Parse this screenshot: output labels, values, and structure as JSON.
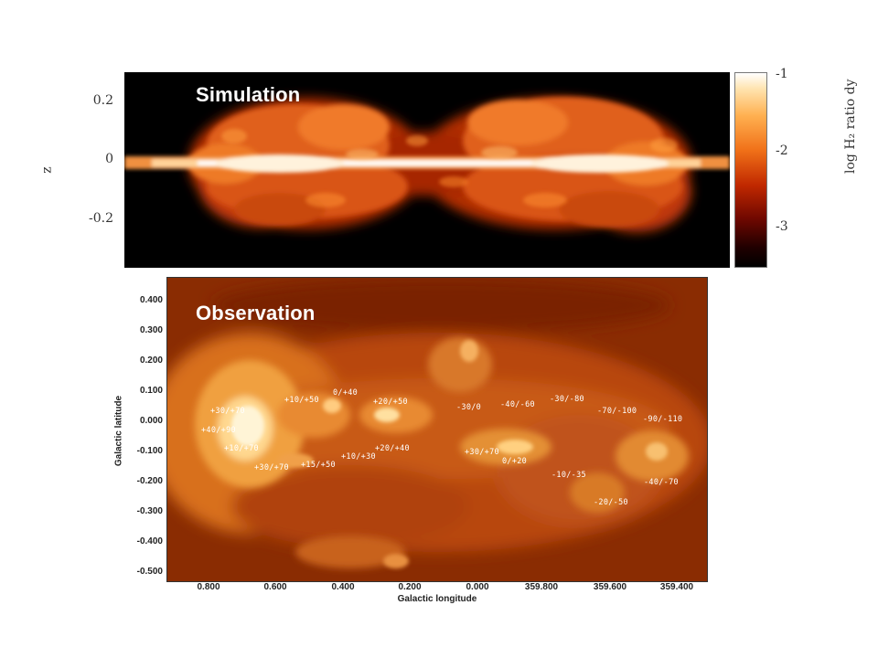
{
  "simulation": {
    "title": "Simulation",
    "y_axis_label": "z",
    "y_ticks": [
      "0.2",
      "0",
      "-0.2"
    ],
    "colorbar": {
      "label": "log  H₂ ratio dy",
      "ticks": [
        "-1",
        "-2",
        "-3"
      ]
    }
  },
  "observation": {
    "title": "Observation",
    "x_axis_label": "Galactic longitude",
    "y_axis_label": "Galactic latitude",
    "lat_ticks": [
      "0.400",
      "0.300",
      "0.200",
      "0.100",
      "0.000",
      "-0.100",
      "-0.200",
      "-0.300",
      "-0.400",
      "-0.500"
    ],
    "lon_ticks": [
      "0.800",
      "0.600",
      "0.400",
      "0.200",
      "0.000",
      "359.800",
      "359.600",
      "359.400"
    ],
    "region_labels": [
      "+30/+70",
      "+40/+90",
      "+10/+70",
      "+30/+70",
      "+10/+50",
      "0/+40",
      "+20/+50",
      "+15/+50",
      "+10/+30",
      "+20/+40",
      "-30/0",
      "+30/+70",
      "0/+20",
      "-40/-60",
      "-30/-80",
      "-70/-100",
      "-90/-110",
      "-10/-35",
      "-40/-70",
      "-20/-50"
    ]
  },
  "colors": {
    "background": "#000000",
    "hot": "#ffffff",
    "warm": "#ff9a2a",
    "cool": "#8a1800"
  }
}
